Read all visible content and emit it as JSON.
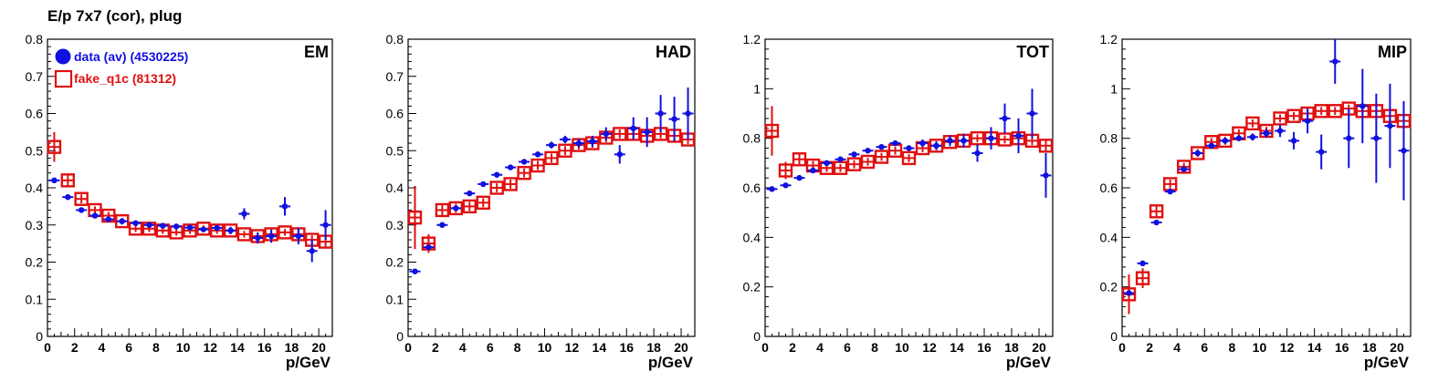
{
  "page_title": "E/p 7x7 (cor), plug",
  "colors": {
    "data": "#1010e0",
    "fake": "#e01010",
    "axis": "#000000"
  },
  "legend": {
    "data_label": "data (av) (4530225)",
    "fake_label": "fake_q1c (81312)"
  },
  "chart_data": [
    {
      "type": "scatter",
      "title": "EM",
      "xlabel": "p/GeV",
      "ylabel": "",
      "xlim": [
        0,
        21
      ],
      "ylim": [
        0,
        0.8
      ],
      "xticks": [
        0,
        2,
        4,
        6,
        8,
        10,
        12,
        14,
        16,
        18,
        20
      ],
      "yticks": [
        0,
        0.1,
        0.2,
        0.3,
        0.4,
        0.5,
        0.6,
        0.7,
        0.8
      ],
      "ytick_labels": [
        "0",
        "0.1",
        "0.2",
        "0.3",
        "0.4",
        "0.5",
        "0.6",
        "0.7",
        "0.8"
      ],
      "series": [
        {
          "name": "data (av) (4530225)",
          "marker": "filled-circle",
          "x": [
            0.5,
            1.5,
            2.5,
            3.5,
            4.5,
            5.5,
            6.5,
            7.5,
            8.5,
            9.5,
            10.5,
            11.5,
            12.5,
            13.5,
            14.5,
            15.5,
            16.5,
            17.5,
            18.5,
            19.5,
            20.5
          ],
          "y": [
            0.42,
            0.375,
            0.34,
            0.325,
            0.315,
            0.31,
            0.305,
            0.3,
            0.298,
            0.296,
            0.293,
            0.288,
            0.292,
            0.285,
            0.33,
            0.265,
            0.27,
            0.35,
            0.27,
            0.23,
            0.3
          ],
          "err": [
            0.005,
            0.004,
            0.004,
            0.004,
            0.004,
            0.004,
            0.004,
            0.005,
            0.005,
            0.006,
            0.006,
            0.007,
            0.008,
            0.01,
            0.015,
            0.015,
            0.018,
            0.025,
            0.022,
            0.03,
            0.04
          ]
        },
        {
          "name": "fake_q1c (81312)",
          "marker": "open-square",
          "x": [
            0.5,
            1.5,
            2.5,
            3.5,
            4.5,
            5.5,
            6.5,
            7.5,
            8.5,
            9.5,
            10.5,
            11.5,
            12.5,
            13.5,
            14.5,
            15.5,
            16.5,
            17.5,
            18.5,
            19.5,
            20.5
          ],
          "y": [
            0.51,
            0.42,
            0.37,
            0.34,
            0.325,
            0.31,
            0.29,
            0.29,
            0.285,
            0.28,
            0.285,
            0.29,
            0.285,
            0.285,
            0.275,
            0.27,
            0.275,
            0.28,
            0.275,
            0.26,
            0.255
          ],
          "err": [
            0.04,
            0.015,
            0.012,
            0.01,
            0.01,
            0.009,
            0.009,
            0.009,
            0.009,
            0.009,
            0.009,
            0.009,
            0.009,
            0.009,
            0.009,
            0.009,
            0.009,
            0.009,
            0.01,
            0.012,
            0.015
          ]
        }
      ]
    },
    {
      "type": "scatter",
      "title": "HAD",
      "xlabel": "p/GeV",
      "ylabel": "",
      "xlim": [
        0,
        21
      ],
      "ylim": [
        0,
        0.8
      ],
      "xticks": [
        0,
        2,
        4,
        6,
        8,
        10,
        12,
        14,
        16,
        18,
        20
      ],
      "yticks": [
        0,
        0.1,
        0.2,
        0.3,
        0.4,
        0.5,
        0.6,
        0.7,
        0.8
      ],
      "ytick_labels": [
        "0",
        "0.1",
        "0.2",
        "0.3",
        "0.4",
        "0.5",
        "0.6",
        "0.7",
        "0.8"
      ],
      "series": [
        {
          "name": "data (av) (4530225)",
          "marker": "filled-circle",
          "x": [
            0.5,
            1.5,
            2.5,
            3.5,
            4.5,
            5.5,
            6.5,
            7.5,
            8.5,
            9.5,
            10.5,
            11.5,
            12.5,
            13.5,
            14.5,
            15.5,
            16.5,
            17.5,
            18.5,
            19.5,
            20.5
          ],
          "y": [
            0.175,
            0.24,
            0.3,
            0.345,
            0.385,
            0.41,
            0.435,
            0.455,
            0.47,
            0.49,
            0.515,
            0.53,
            0.52,
            0.525,
            0.545,
            0.49,
            0.56,
            0.55,
            0.6,
            0.585,
            0.6
          ],
          "err": [
            0.005,
            0.006,
            0.005,
            0.005,
            0.005,
            0.005,
            0.006,
            0.006,
            0.007,
            0.008,
            0.009,
            0.01,
            0.012,
            0.015,
            0.018,
            0.025,
            0.03,
            0.04,
            0.05,
            0.06,
            0.07
          ]
        },
        {
          "name": "fake_q1c (81312)",
          "marker": "open-square",
          "x": [
            0.5,
            1.5,
            2.5,
            3.5,
            4.5,
            5.5,
            6.5,
            7.5,
            8.5,
            9.5,
            10.5,
            11.5,
            12.5,
            13.5,
            14.5,
            15.5,
            16.5,
            17.5,
            18.5,
            19.5,
            20.5
          ],
          "y": [
            0.32,
            0.25,
            0.34,
            0.345,
            0.35,
            0.36,
            0.4,
            0.41,
            0.44,
            0.46,
            0.48,
            0.5,
            0.515,
            0.52,
            0.535,
            0.545,
            0.545,
            0.54,
            0.545,
            0.54,
            0.53
          ],
          "err": [
            0.085,
            0.025,
            0.015,
            0.012,
            0.012,
            0.012,
            0.012,
            0.012,
            0.012,
            0.012,
            0.012,
            0.012,
            0.012,
            0.012,
            0.012,
            0.012,
            0.012,
            0.012,
            0.012,
            0.012,
            0.012
          ]
        }
      ]
    },
    {
      "type": "scatter",
      "title": "TOT",
      "xlabel": "p/GeV",
      "ylabel": "",
      "xlim": [
        0,
        21
      ],
      "ylim": [
        0,
        1.2
      ],
      "xticks": [
        0,
        2,
        4,
        6,
        8,
        10,
        12,
        14,
        16,
        18,
        20
      ],
      "yticks": [
        0,
        0.2,
        0.4,
        0.6,
        0.8,
        1.0,
        1.2
      ],
      "ytick_labels": [
        "0",
        "0.2",
        "0.4",
        "0.6",
        "0.8",
        "1",
        "1.2"
      ],
      "series": [
        {
          "name": "data (av) (4530225)",
          "marker": "filled-circle",
          "x": [
            0.5,
            1.5,
            2.5,
            3.5,
            4.5,
            5.5,
            6.5,
            7.5,
            8.5,
            9.5,
            10.5,
            11.5,
            12.5,
            13.5,
            14.5,
            15.5,
            16.5,
            17.5,
            18.5,
            19.5,
            20.5
          ],
          "y": [
            0.595,
            0.61,
            0.64,
            0.67,
            0.7,
            0.715,
            0.735,
            0.75,
            0.765,
            0.78,
            0.76,
            0.78,
            0.77,
            0.79,
            0.79,
            0.74,
            0.8,
            0.88,
            0.81,
            0.9,
            0.65
          ],
          "err": [
            0.005,
            0.005,
            0.005,
            0.005,
            0.005,
            0.006,
            0.006,
            0.007,
            0.008,
            0.01,
            0.012,
            0.015,
            0.018,
            0.022,
            0.028,
            0.035,
            0.045,
            0.06,
            0.07,
            0.1,
            0.09
          ]
        },
        {
          "name": "fake_q1c (81312)",
          "marker": "open-square",
          "x": [
            0.5,
            1.5,
            2.5,
            3.5,
            4.5,
            5.5,
            6.5,
            7.5,
            8.5,
            9.5,
            10.5,
            11.5,
            12.5,
            13.5,
            14.5,
            15.5,
            16.5,
            17.5,
            18.5,
            19.5,
            20.5
          ],
          "y": [
            0.83,
            0.67,
            0.715,
            0.69,
            0.68,
            0.68,
            0.695,
            0.705,
            0.725,
            0.75,
            0.72,
            0.76,
            0.77,
            0.785,
            0.79,
            0.8,
            0.8,
            0.795,
            0.8,
            0.79,
            0.77
          ],
          "err": [
            0.1,
            0.035,
            0.02,
            0.018,
            0.016,
            0.016,
            0.016,
            0.016,
            0.016,
            0.016,
            0.016,
            0.016,
            0.016,
            0.016,
            0.016,
            0.016,
            0.016,
            0.016,
            0.016,
            0.018,
            0.02
          ]
        }
      ]
    },
    {
      "type": "scatter",
      "title": "MIP",
      "xlabel": "p/GeV",
      "ylabel": "",
      "xlim": [
        0,
        21
      ],
      "ylim": [
        0,
        1.2
      ],
      "xticks": [
        0,
        2,
        4,
        6,
        8,
        10,
        12,
        14,
        16,
        18,
        20
      ],
      "yticks": [
        0,
        0.2,
        0.4,
        0.6,
        0.8,
        1.0,
        1.2
      ],
      "ytick_labels": [
        "0",
        "0.2",
        "0.4",
        "0.6",
        "0.8",
        "1",
        "1.2"
      ],
      "series": [
        {
          "name": "data (av) (4530225)",
          "marker": "filled-circle",
          "x": [
            0.5,
            1.5,
            2.5,
            3.5,
            4.5,
            5.5,
            6.5,
            7.5,
            8.5,
            9.5,
            10.5,
            11.5,
            12.5,
            13.5,
            14.5,
            15.5,
            16.5,
            17.5,
            18.5,
            19.5,
            20.5
          ],
          "y": [
            0.175,
            0.295,
            0.46,
            0.585,
            0.675,
            0.74,
            0.77,
            0.79,
            0.8,
            0.805,
            0.82,
            0.83,
            0.79,
            0.87,
            0.745,
            1.11,
            0.8,
            0.93,
            0.8,
            0.85,
            0.75
          ],
          "err": [
            0.01,
            0.008,
            0.007,
            0.007,
            0.007,
            0.008,
            0.009,
            0.01,
            0.012,
            0.014,
            0.018,
            0.025,
            0.035,
            0.05,
            0.07,
            0.09,
            0.12,
            0.15,
            0.18,
            0.17,
            0.2
          ]
        },
        {
          "name": "fake_q1c (81312)",
          "marker": "open-square",
          "x": [
            0.5,
            1.5,
            2.5,
            3.5,
            4.5,
            5.5,
            6.5,
            7.5,
            8.5,
            9.5,
            10.5,
            11.5,
            12.5,
            13.5,
            14.5,
            15.5,
            16.5,
            17.5,
            18.5,
            19.5,
            20.5
          ],
          "y": [
            0.17,
            0.235,
            0.505,
            0.615,
            0.685,
            0.74,
            0.785,
            0.79,
            0.82,
            0.86,
            0.83,
            0.88,
            0.89,
            0.9,
            0.91,
            0.91,
            0.92,
            0.91,
            0.91,
            0.89,
            0.87
          ],
          "err": [
            0.08,
            0.04,
            0.02,
            0.018,
            0.016,
            0.016,
            0.016,
            0.016,
            0.016,
            0.016,
            0.016,
            0.016,
            0.016,
            0.016,
            0.016,
            0.016,
            0.016,
            0.016,
            0.016,
            0.018,
            0.02
          ]
        }
      ]
    }
  ]
}
